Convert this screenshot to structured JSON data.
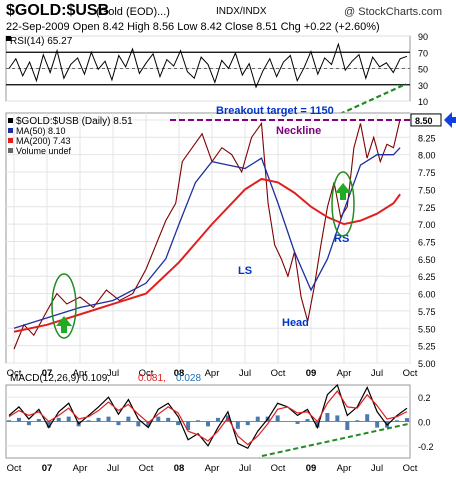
{
  "header": {
    "symbol": "$GOLD:$USB",
    "description": "(Gold (EOD)...)",
    "exchange": "INDX/INDX",
    "brand": "@ StockCharts.com",
    "quote": "22-Sep-2009 Open 8.42 High 8.56 Low 8.42 Close 8.51 Chg +0.22 (+2.60%)",
    "arrow_icon": "up-triangle-icon"
  },
  "colors": {
    "price": "#800000",
    "ma50": "#1f2f9f",
    "ma200": "#e02020",
    "guide": "#228b22",
    "target": "#800080",
    "annotation": "#0033cc",
    "arrow": "#1040e0"
  },
  "chart_data": [
    {
      "type": "line",
      "panel": "rsi",
      "legend": "RSI(14) 65.27",
      "ylim": [
        10,
        90
      ],
      "yticks": [
        10,
        30,
        50,
        70,
        90
      ],
      "reference_lines": [
        30,
        70
      ],
      "series": [
        {
          "values": [
            50,
            62,
            41,
            58,
            35,
            67,
            45,
            72,
            38,
            55,
            63,
            43,
            70,
            49,
            59,
            36,
            66,
            52,
            74,
            44,
            57,
            68,
            40,
            61,
            53,
            72,
            46,
            38,
            64,
            55,
            33,
            60,
            50,
            69,
            42,
            56,
            27,
            47,
            62,
            40,
            58,
            66,
            35,
            51,
            71,
            43,
            63,
            55,
            80,
            48,
            59,
            67,
            38,
            64,
            52,
            57,
            45,
            62,
            65
          ]
        }
      ],
      "annotation": "uptrend"
    },
    {
      "type": "line",
      "panel": "price",
      "legend": [
        "$GOLD:$USB (Daily) 8.51",
        "MA(50) 8.10",
        "MA(200) 7.43",
        "Volume undef"
      ],
      "ylim": [
        5.0,
        8.6
      ],
      "yticks": [
        5.0,
        5.25,
        5.5,
        5.75,
        6.0,
        6.25,
        6.5,
        6.75,
        7.0,
        7.25,
        7.5,
        7.75,
        8.0,
        8.25,
        8.5
      ],
      "x": [
        "Oct",
        "07",
        "Apr",
        "Jul",
        "Oct",
        "08",
        "Apr",
        "Jul",
        "Oct",
        "09",
        "Apr",
        "Jul",
        "Oct"
      ],
      "series": [
        {
          "name": "$GOLD:$USB (Daily) 8.51",
          "values": [
            [
              0.0,
              5.2
            ],
            [
              0.3,
              5.55
            ],
            [
              0.6,
              5.4
            ],
            [
              1.0,
              5.75
            ],
            [
              1.3,
              6.0
            ],
            [
              1.6,
              5.85
            ],
            [
              2.0,
              5.95
            ],
            [
              2.4,
              5.8
            ],
            [
              2.8,
              6.05
            ],
            [
              3.2,
              5.9
            ],
            [
              3.6,
              6.0
            ],
            [
              4.0,
              6.35
            ],
            [
              4.3,
              6.7
            ],
            [
              4.6,
              7.05
            ],
            [
              4.9,
              7.3
            ],
            [
              5.1,
              7.9
            ],
            [
              5.4,
              8.1
            ],
            [
              5.7,
              8.3
            ],
            [
              6.0,
              7.9
            ],
            [
              6.3,
              8.1
            ],
            [
              6.6,
              8.0
            ],
            [
              6.9,
              7.75
            ],
            [
              7.2,
              8.25
            ],
            [
              7.5,
              8.45
            ],
            [
              7.7,
              7.3
            ],
            [
              7.9,
              6.7
            ],
            [
              8.1,
              6.5
            ],
            [
              8.3,
              6.25
            ],
            [
              8.5,
              6.6
            ],
            [
              8.7,
              5.95
            ],
            [
              8.9,
              5.6
            ],
            [
              9.1,
              6.1
            ],
            [
              9.3,
              6.7
            ],
            [
              9.5,
              7.25
            ],
            [
              9.7,
              7.6
            ],
            [
              9.9,
              7.1
            ],
            [
              10.1,
              7.25
            ],
            [
              10.3,
              8.1
            ],
            [
              10.5,
              8.45
            ],
            [
              10.7,
              7.95
            ],
            [
              10.9,
              8.25
            ],
            [
              11.1,
              7.9
            ],
            [
              11.3,
              8.15
            ],
            [
              11.5,
              8.1
            ],
            [
              11.7,
              8.51
            ]
          ]
        },
        {
          "name": "MA(50) 8.10",
          "values": [
            [
              0.0,
              5.5
            ],
            [
              1.0,
              5.65
            ],
            [
              2.0,
              5.8
            ],
            [
              3.0,
              5.9
            ],
            [
              4.0,
              6.15
            ],
            [
              4.6,
              6.5
            ],
            [
              5.0,
              7.0
            ],
            [
              5.5,
              7.6
            ],
            [
              6.0,
              7.9
            ],
            [
              6.5,
              7.85
            ],
            [
              7.0,
              7.8
            ],
            [
              7.5,
              7.95
            ],
            [
              8.0,
              7.3
            ],
            [
              8.5,
              6.6
            ],
            [
              9.0,
              6.05
            ],
            [
              9.5,
              6.5
            ],
            [
              10.0,
              7.2
            ],
            [
              10.5,
              7.85
            ],
            [
              11.0,
              8.0
            ],
            [
              11.5,
              8.0
            ],
            [
              11.7,
              8.1
            ]
          ]
        },
        {
          "name": "MA(200) 7.43",
          "values": [
            [
              0.0,
              5.45
            ],
            [
              1.0,
              5.55
            ],
            [
              2.0,
              5.7
            ],
            [
              3.0,
              5.85
            ],
            [
              4.0,
              6.0
            ],
            [
              5.0,
              6.45
            ],
            [
              6.0,
              7.0
            ],
            [
              7.0,
              7.5
            ],
            [
              7.5,
              7.65
            ],
            [
              8.0,
              7.6
            ],
            [
              8.5,
              7.45
            ],
            [
              9.0,
              7.25
            ],
            [
              9.5,
              7.1
            ],
            [
              10.0,
              7.0
            ],
            [
              10.5,
              7.05
            ],
            [
              11.0,
              7.15
            ],
            [
              11.5,
              7.3
            ],
            [
              11.7,
              7.43
            ]
          ]
        }
      ],
      "annotations": {
        "target_label": "Breakout target = 1150",
        "target_level": 8.5,
        "neckline_label": "Neckline",
        "neckline_level": 8.5,
        "left_shoulder": "LS",
        "head": "Head",
        "right_shoulder": "RS",
        "price_marker": "8.50"
      }
    },
    {
      "type": "line",
      "panel": "macd",
      "legend": [
        "MACD(12,26,9) 0.109,",
        "0.081,",
        "0.028"
      ],
      "ylim": [
        -0.3,
        0.3
      ],
      "yticks": [
        -0.2,
        0.0,
        0.2
      ],
      "series": [
        {
          "name": "MACD(12,26,9)",
          "values": [
            0.05,
            0.12,
            0.02,
            0.1,
            -0.05,
            0.08,
            0.15,
            -0.02,
            0.05,
            0.12,
            0.2,
            0.06,
            0.18,
            0.02,
            -0.05,
            0.1,
            0.15,
            0.04,
            -0.15,
            -0.1,
            -0.2,
            -0.05,
            0.08,
            -0.18,
            -0.22,
            -0.08,
            0.02,
            0.15,
            0.12,
            0.05,
            0.1,
            -0.05,
            0.22,
            0.3,
            0.05,
            0.12,
            0.28,
            0.08,
            -0.03,
            0.05,
            0.109
          ]
        },
        {
          "name": "signal",
          "values": [
            0.04,
            0.09,
            0.05,
            0.08,
            0.0,
            0.05,
            0.11,
            0.02,
            0.04,
            0.09,
            0.16,
            0.09,
            0.14,
            0.06,
            -0.01,
            0.06,
            0.12,
            0.07,
            -0.08,
            -0.11,
            -0.16,
            -0.08,
            0.03,
            -0.12,
            -0.19,
            -0.12,
            -0.02,
            0.1,
            0.12,
            0.07,
            0.08,
            0.0,
            0.15,
            0.25,
            0.12,
            0.11,
            0.22,
            0.13,
            0.02,
            0.04,
            0.081
          ]
        }
      ],
      "annotation": "higher lows"
    }
  ],
  "x_axis_labels": [
    "Oct",
    "07",
    "Apr",
    "Jul",
    "Oct",
    "08",
    "Apr",
    "Jul",
    "Oct",
    "09",
    "Apr",
    "Jul",
    "Oct"
  ]
}
